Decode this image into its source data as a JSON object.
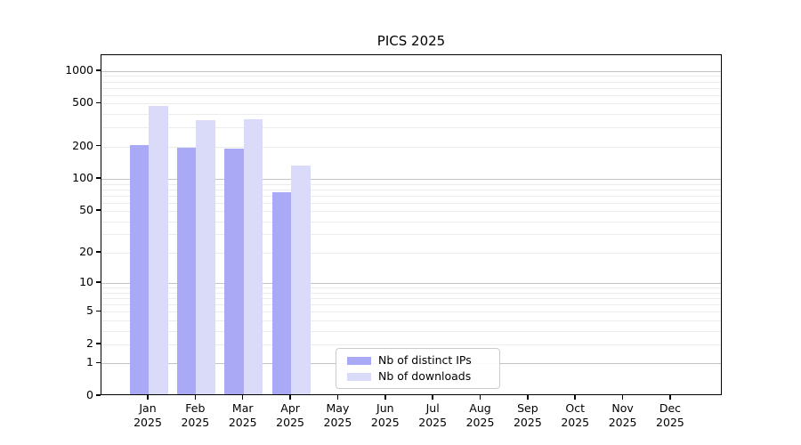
{
  "title": "PICS 2025",
  "chart_data": {
    "type": "bar",
    "title": "PICS 2025",
    "xlabel": "",
    "ylabel": "",
    "y_scale": "log10(x+1)",
    "ylim": [
      0,
      1400
    ],
    "yticks": [
      0,
      1,
      2,
      5,
      10,
      20,
      50,
      100,
      200,
      500,
      1000
    ],
    "ytick_labels": [
      "0",
      "1",
      "2",
      "5",
      "10",
      "20",
      "50",
      "100",
      "200",
      "500",
      "1000"
    ],
    "major_grid_values": [
      1,
      10,
      100,
      1000
    ],
    "minor_grid_values": [
      3,
      4,
      6,
      7,
      8,
      9,
      30,
      40,
      60,
      70,
      80,
      90,
      300,
      400,
      600,
      700,
      800,
      900
    ],
    "grid": "on",
    "categories": [
      "Jan 2025",
      "Feb 2025",
      "Mar 2025",
      "Apr 2025",
      "May 2025",
      "Jun 2025",
      "Jul 2025",
      "Aug 2025",
      "Sep 2025",
      "Oct 2025",
      "Nov 2025",
      "Dec 2025"
    ],
    "series": [
      {
        "name": "Nb of distinct IPs",
        "color": "#a9a9f6",
        "values": [
          200,
          186,
          185,
          72,
          0,
          0,
          0,
          0,
          0,
          0,
          0,
          0
        ]
      },
      {
        "name": "Nb of downloads",
        "color": "#dadaf9",
        "values": [
          460,
          340,
          345,
          129,
          0,
          0,
          0,
          0,
          0,
          0,
          0,
          0
        ]
      }
    ],
    "legend_position": "bottom-center"
  },
  "colors": {
    "background": "#ffffff",
    "axis": "#000000",
    "grid_major": "#c3c3c3",
    "grid_minor": "#ececec",
    "legend_border": "#cccccc"
  }
}
